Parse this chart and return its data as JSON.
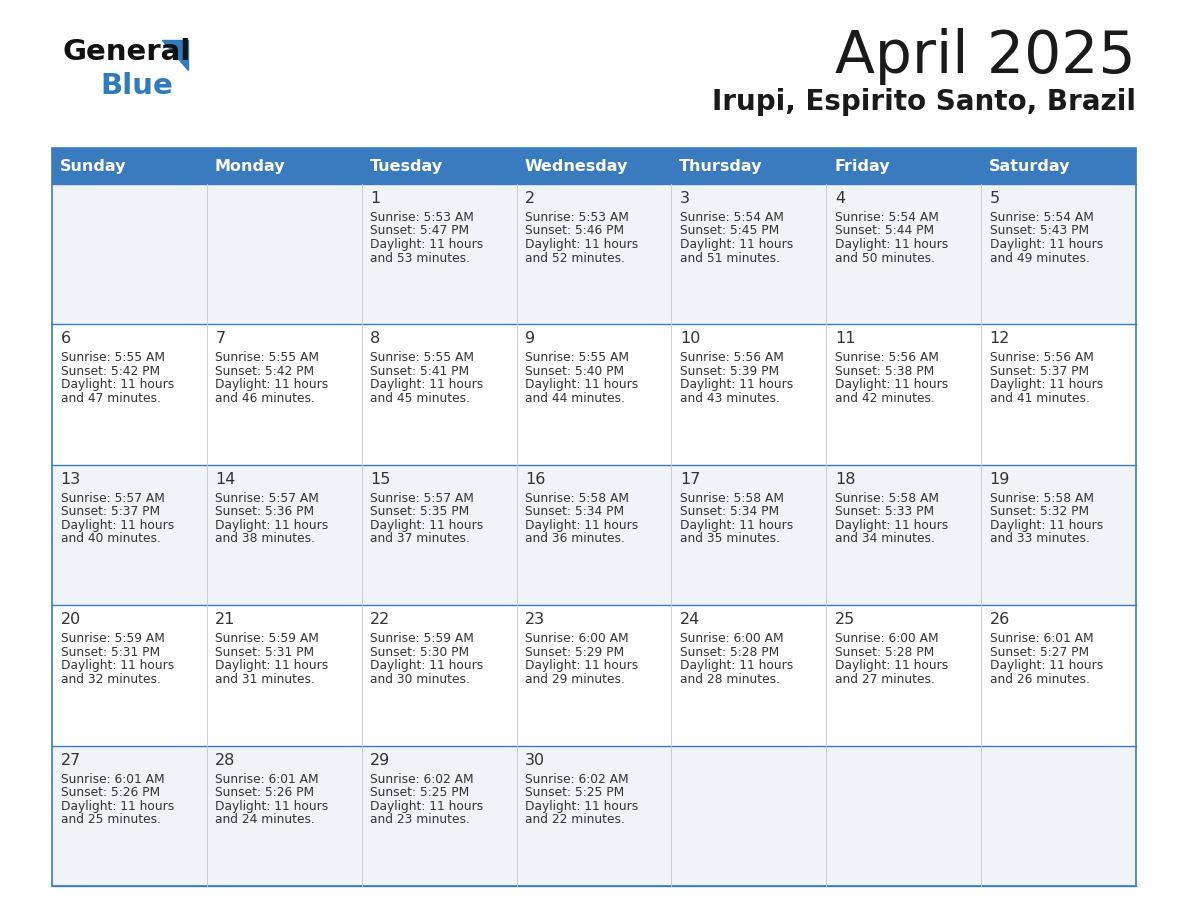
{
  "title": "April 2025",
  "subtitle": "Irupi, Espirito Santo, Brazil",
  "days_of_week": [
    "Sunday",
    "Monday",
    "Tuesday",
    "Wednesday",
    "Thursday",
    "Friday",
    "Saturday"
  ],
  "header_bg": "#3a7bbf",
  "header_text": "#FFFFFF",
  "row_bg_even": "#f0f4f8",
  "row_bg_odd": "#FFFFFF",
  "separator_color": "#3a7bbf",
  "text_color": "#333333",
  "title_color": "#1a1a1a",
  "logo_general_color": "#111111",
  "logo_blue_color": "#2e7bbf",
  "calendar_data": [
    {
      "day": 1,
      "col": 2,
      "row": 0,
      "sunrise": "5:53 AM",
      "sunset": "5:47 PM",
      "daylight_hours": 11,
      "daylight_minutes": 53
    },
    {
      "day": 2,
      "col": 3,
      "row": 0,
      "sunrise": "5:53 AM",
      "sunset": "5:46 PM",
      "daylight_hours": 11,
      "daylight_minutes": 52
    },
    {
      "day": 3,
      "col": 4,
      "row": 0,
      "sunrise": "5:54 AM",
      "sunset": "5:45 PM",
      "daylight_hours": 11,
      "daylight_minutes": 51
    },
    {
      "day": 4,
      "col": 5,
      "row": 0,
      "sunrise": "5:54 AM",
      "sunset": "5:44 PM",
      "daylight_hours": 11,
      "daylight_minutes": 50
    },
    {
      "day": 5,
      "col": 6,
      "row": 0,
      "sunrise": "5:54 AM",
      "sunset": "5:43 PM",
      "daylight_hours": 11,
      "daylight_minutes": 49
    },
    {
      "day": 6,
      "col": 0,
      "row": 1,
      "sunrise": "5:55 AM",
      "sunset": "5:42 PM",
      "daylight_hours": 11,
      "daylight_minutes": 47
    },
    {
      "day": 7,
      "col": 1,
      "row": 1,
      "sunrise": "5:55 AM",
      "sunset": "5:42 PM",
      "daylight_hours": 11,
      "daylight_minutes": 46
    },
    {
      "day": 8,
      "col": 2,
      "row": 1,
      "sunrise": "5:55 AM",
      "sunset": "5:41 PM",
      "daylight_hours": 11,
      "daylight_minutes": 45
    },
    {
      "day": 9,
      "col": 3,
      "row": 1,
      "sunrise": "5:55 AM",
      "sunset": "5:40 PM",
      "daylight_hours": 11,
      "daylight_minutes": 44
    },
    {
      "day": 10,
      "col": 4,
      "row": 1,
      "sunrise": "5:56 AM",
      "sunset": "5:39 PM",
      "daylight_hours": 11,
      "daylight_minutes": 43
    },
    {
      "day": 11,
      "col": 5,
      "row": 1,
      "sunrise": "5:56 AM",
      "sunset": "5:38 PM",
      "daylight_hours": 11,
      "daylight_minutes": 42
    },
    {
      "day": 12,
      "col": 6,
      "row": 1,
      "sunrise": "5:56 AM",
      "sunset": "5:37 PM",
      "daylight_hours": 11,
      "daylight_minutes": 41
    },
    {
      "day": 13,
      "col": 0,
      "row": 2,
      "sunrise": "5:57 AM",
      "sunset": "5:37 PM",
      "daylight_hours": 11,
      "daylight_minutes": 40
    },
    {
      "day": 14,
      "col": 1,
      "row": 2,
      "sunrise": "5:57 AM",
      "sunset": "5:36 PM",
      "daylight_hours": 11,
      "daylight_minutes": 38
    },
    {
      "day": 15,
      "col": 2,
      "row": 2,
      "sunrise": "5:57 AM",
      "sunset": "5:35 PM",
      "daylight_hours": 11,
      "daylight_minutes": 37
    },
    {
      "day": 16,
      "col": 3,
      "row": 2,
      "sunrise": "5:58 AM",
      "sunset": "5:34 PM",
      "daylight_hours": 11,
      "daylight_minutes": 36
    },
    {
      "day": 17,
      "col": 4,
      "row": 2,
      "sunrise": "5:58 AM",
      "sunset": "5:34 PM",
      "daylight_hours": 11,
      "daylight_minutes": 35
    },
    {
      "day": 18,
      "col": 5,
      "row": 2,
      "sunrise": "5:58 AM",
      "sunset": "5:33 PM",
      "daylight_hours": 11,
      "daylight_minutes": 34
    },
    {
      "day": 19,
      "col": 6,
      "row": 2,
      "sunrise": "5:58 AM",
      "sunset": "5:32 PM",
      "daylight_hours": 11,
      "daylight_minutes": 33
    },
    {
      "day": 20,
      "col": 0,
      "row": 3,
      "sunrise": "5:59 AM",
      "sunset": "5:31 PM",
      "daylight_hours": 11,
      "daylight_minutes": 32
    },
    {
      "day": 21,
      "col": 1,
      "row": 3,
      "sunrise": "5:59 AM",
      "sunset": "5:31 PM",
      "daylight_hours": 11,
      "daylight_minutes": 31
    },
    {
      "day": 22,
      "col": 2,
      "row": 3,
      "sunrise": "5:59 AM",
      "sunset": "5:30 PM",
      "daylight_hours": 11,
      "daylight_minutes": 30
    },
    {
      "day": 23,
      "col": 3,
      "row": 3,
      "sunrise": "6:00 AM",
      "sunset": "5:29 PM",
      "daylight_hours": 11,
      "daylight_minutes": 29
    },
    {
      "day": 24,
      "col": 4,
      "row": 3,
      "sunrise": "6:00 AM",
      "sunset": "5:28 PM",
      "daylight_hours": 11,
      "daylight_minutes": 28
    },
    {
      "day": 25,
      "col": 5,
      "row": 3,
      "sunrise": "6:00 AM",
      "sunset": "5:28 PM",
      "daylight_hours": 11,
      "daylight_minutes": 27
    },
    {
      "day": 26,
      "col": 6,
      "row": 3,
      "sunrise": "6:01 AM",
      "sunset": "5:27 PM",
      "daylight_hours": 11,
      "daylight_minutes": 26
    },
    {
      "day": 27,
      "col": 0,
      "row": 4,
      "sunrise": "6:01 AM",
      "sunset": "5:26 PM",
      "daylight_hours": 11,
      "daylight_minutes": 25
    },
    {
      "day": 28,
      "col": 1,
      "row": 4,
      "sunrise": "6:01 AM",
      "sunset": "5:26 PM",
      "daylight_hours": 11,
      "daylight_minutes": 24
    },
    {
      "day": 29,
      "col": 2,
      "row": 4,
      "sunrise": "6:02 AM",
      "sunset": "5:25 PM",
      "daylight_hours": 11,
      "daylight_minutes": 23
    },
    {
      "day": 30,
      "col": 3,
      "row": 4,
      "sunrise": "6:02 AM",
      "sunset": "5:25 PM",
      "daylight_hours": 11,
      "daylight_minutes": 22
    }
  ]
}
